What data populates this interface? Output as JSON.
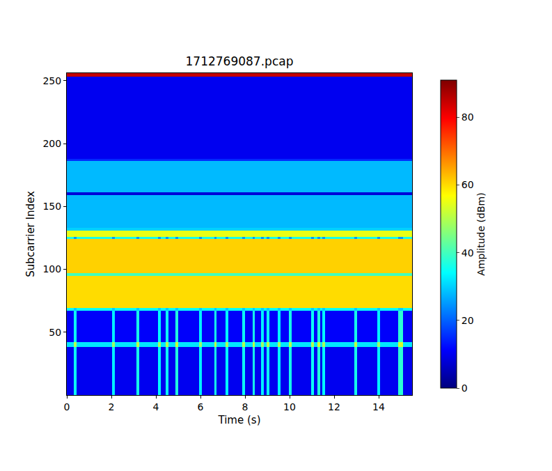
{
  "chart_data": {
    "type": "heatmap",
    "title": "1712769087.pcap",
    "x_label": "Time (s)",
    "y_label": "Subcarrier Index",
    "color": "jet",
    "x_edges": [
      0,
      0.31,
      0.43,
      2.03,
      2.15,
      3.12,
      3.24,
      4.09,
      4.21,
      4.44,
      4.56,
      4.87,
      4.99,
      5.93,
      6.05,
      6.61,
      6.73,
      7.14,
      7.26,
      7.89,
      8.01,
      8.33,
      8.45,
      8.73,
      8.85,
      8.98,
      9.1,
      9.48,
      9.6,
      9.98,
      10.1,
      10.98,
      11.1,
      11.26,
      11.38,
      11.48,
      11.6,
      12.91,
      13.03,
      13.94,
      14.06,
      14.88,
      15.08,
      15.5
    ],
    "y_edges": [
      0,
      38,
      42,
      67,
      69,
      95,
      97,
      124,
      126,
      131,
      133,
      159,
      161,
      186,
      188,
      253,
      256
    ],
    "cells": [
      [
        10,
        35,
        10,
        33,
        10,
        36,
        10,
        34,
        10,
        35,
        10,
        37,
        10,
        33,
        10,
        36,
        10,
        34,
        10,
        35,
        10,
        36,
        10,
        33,
        10,
        35,
        10,
        34,
        10,
        36,
        10,
        35,
        10,
        37,
        10,
        34,
        10,
        36,
        10,
        33,
        10,
        38,
        10
      ],
      [
        32,
        50,
        32,
        48,
        32,
        51,
        32,
        49,
        32,
        50,
        32,
        52,
        32,
        48,
        32,
        51,
        32,
        49,
        32,
        50,
        32,
        51,
        32,
        48,
        32,
        50,
        32,
        49,
        32,
        51,
        32,
        50,
        32,
        52,
        32,
        49,
        32,
        51,
        32,
        48,
        32,
        53,
        32
      ],
      [
        11,
        35,
        11,
        33,
        11,
        36,
        11,
        34,
        11,
        35,
        11,
        37,
        11,
        33,
        11,
        36,
        11,
        34,
        11,
        35,
        11,
        36,
        11,
        33,
        11,
        35,
        11,
        34,
        11,
        36,
        11,
        35,
        11,
        37,
        11,
        34,
        11,
        36,
        11,
        33,
        11,
        38,
        11
      ],
      [
        35,
        30,
        35,
        30,
        35,
        30,
        35,
        30,
        35,
        30,
        35,
        30,
        35,
        30,
        35,
        30,
        35,
        30,
        35,
        30,
        35,
        30,
        35,
        30,
        35,
        30,
        35,
        30,
        35,
        30,
        35,
        30,
        35,
        30,
        35,
        30,
        35,
        30,
        35,
        30,
        35,
        30,
        35
      ],
      [
        60,
        60,
        60,
        60,
        60,
        60,
        60,
        60,
        60,
        60,
        60,
        60,
        60,
        60,
        60,
        60,
        60,
        60,
        60,
        60,
        60,
        60,
        60,
        60,
        60,
        60,
        60,
        60,
        60,
        60,
        60,
        60,
        60,
        60,
        60,
        60,
        60,
        60,
        60,
        60,
        60,
        60,
        60
      ],
      [
        40,
        40,
        40,
        40,
        40,
        40,
        40,
        40,
        40,
        40,
        40,
        40,
        40,
        40,
        40,
        40,
        40,
        40,
        40,
        40,
        40,
        40,
        40,
        40,
        40,
        40,
        40,
        40,
        40,
        40,
        40,
        40,
        40,
        40,
        40,
        40,
        40,
        40,
        40,
        40,
        40,
        40,
        40
      ],
      [
        61,
        61,
        61,
        61,
        61,
        61,
        61,
        61,
        61,
        61,
        61,
        61,
        61,
        61,
        61,
        61,
        61,
        61,
        61,
        61,
        61,
        61,
        61,
        61,
        61,
        61,
        61,
        61,
        61,
        61,
        61,
        61,
        61,
        61,
        61,
        61,
        61,
        61,
        61,
        61,
        61,
        61,
        61
      ],
      [
        36,
        25,
        36,
        25,
        36,
        25,
        36,
        25,
        36,
        25,
        36,
        25,
        36,
        25,
        36,
        25,
        36,
        25,
        36,
        25,
        36,
        25,
        36,
        25,
        36,
        25,
        36,
        25,
        36,
        25,
        36,
        25,
        36,
        25,
        36,
        25,
        36,
        25,
        36,
        25,
        36,
        25,
        36
      ],
      [
        55,
        55,
        55,
        55,
        55,
        55,
        55,
        55,
        55,
        55,
        55,
        55,
        55,
        55,
        55,
        55,
        55,
        55,
        55,
        55,
        55,
        55,
        55,
        55,
        55,
        55,
        55,
        55,
        55,
        55,
        55,
        55,
        55,
        55,
        55,
        55,
        55,
        55,
        55,
        55,
        55,
        55,
        55
      ],
      [
        30,
        30,
        30,
        30,
        30,
        30,
        30,
        30,
        30,
        30,
        30,
        30,
        30,
        30,
        30,
        30,
        30,
        30,
        30,
        30,
        30,
        30,
        30,
        30,
        30,
        30,
        30,
        30,
        30,
        30,
        30,
        30,
        30,
        30,
        30,
        30,
        30,
        30,
        30,
        30,
        30,
        30,
        30
      ],
      [
        28,
        28,
        28,
        28,
        28,
        28,
        28,
        28,
        28,
        28,
        28,
        28,
        28,
        28,
        28,
        28,
        28,
        28,
        28,
        28,
        28,
        28,
        28,
        28,
        28,
        28,
        28,
        28,
        28,
        28,
        28,
        28,
        28,
        28,
        28,
        28,
        28,
        28,
        28,
        28,
        28,
        28,
        28
      ],
      [
        8,
        8,
        8,
        8,
        8,
        8,
        8,
        8,
        8,
        8,
        8,
        8,
        8,
        8,
        8,
        8,
        8,
        8,
        8,
        8,
        8,
        8,
        8,
        8,
        8,
        8,
        8,
        8,
        8,
        8,
        8,
        8,
        8,
        8,
        8,
        8,
        8,
        8,
        8,
        8,
        8,
        8,
        8
      ],
      [
        28,
        28,
        28,
        28,
        28,
        28,
        28,
        28,
        28,
        28,
        28,
        28,
        28,
        28,
        28,
        28,
        28,
        28,
        28,
        28,
        28,
        28,
        28,
        28,
        28,
        28,
        28,
        28,
        28,
        28,
        28,
        28,
        28,
        28,
        28,
        28,
        28,
        28,
        28,
        28,
        28,
        28,
        28
      ],
      [
        15,
        15,
        15,
        15,
        15,
        15,
        15,
        15,
        15,
        15,
        15,
        15,
        15,
        15,
        15,
        15,
        15,
        15,
        15,
        15,
        15,
        15,
        15,
        15,
        15,
        15,
        15,
        15,
        15,
        15,
        15,
        15,
        15,
        15,
        15,
        15,
        15,
        15,
        15,
        15,
        15,
        15,
        15
      ],
      [
        10,
        10,
        10,
        10,
        10,
        10,
        10,
        10,
        10,
        10,
        10,
        10,
        10,
        10,
        10,
        10,
        10,
        10,
        10,
        10,
        10,
        10,
        10,
        10,
        10,
        10,
        10,
        10,
        10,
        10,
        10,
        10,
        10,
        10,
        10,
        10,
        10,
        10,
        10,
        10,
        10,
        10,
        10
      ],
      [
        85,
        85,
        85,
        85,
        85,
        85,
        85,
        85,
        85,
        85,
        85,
        85,
        85,
        85,
        85,
        85,
        85,
        85,
        85,
        85,
        85,
        85,
        85,
        85,
        85,
        85,
        85,
        85,
        85,
        85,
        85,
        85,
        85,
        85,
        85,
        85,
        85,
        85,
        85,
        85,
        85,
        85,
        85
      ]
    ],
    "xlim": [
      0,
      15.5
    ],
    "xticks": [
      0,
      2,
      4,
      6,
      8,
      10,
      12,
      14
    ],
    "ylim": [
      0,
      256
    ],
    "yticks": [
      50,
      100,
      150,
      200,
      250
    ],
    "colorbar": {
      "label": "Amplitude (dBm)",
      "range": [
        0,
        91
      ],
      "ticks": [
        0,
        20,
        40,
        60,
        80
      ]
    }
  }
}
